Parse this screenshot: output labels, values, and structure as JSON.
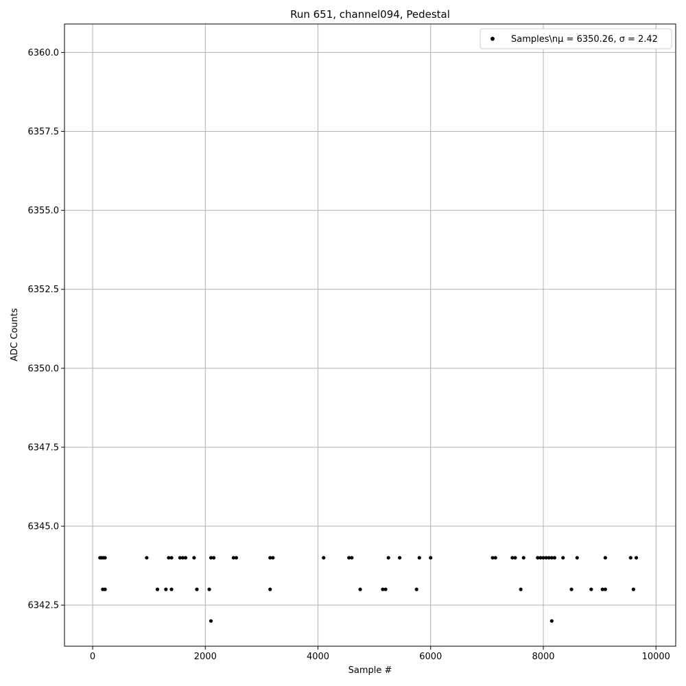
{
  "chart_data": {
    "type": "scatter",
    "title": "Run 651, channel094, Pedestal",
    "xlabel": "Sample #",
    "ylabel": "ADC Counts",
    "xlim": [
      -500,
      10350
    ],
    "ylim": [
      6341.2,
      6360.9
    ],
    "xticks": [
      0,
      2000,
      4000,
      6000,
      8000,
      10000
    ],
    "yticks": [
      6342.5,
      6345.0,
      6347.5,
      6350.0,
      6352.5,
      6355.0,
      6357.5,
      6360.0
    ],
    "xtick_labels": [
      "0",
      "2000",
      "4000",
      "6000",
      "8000",
      "10000"
    ],
    "ytick_labels": [
      "6342.5",
      "6345.0",
      "6347.5",
      "6350.0",
      "6352.5",
      "6355.0",
      "6357.5",
      "6360.0"
    ],
    "grid": true,
    "legend": {
      "placement": "top-right",
      "label": "Samples\\nμ = 6350.26, σ = 2.42"
    },
    "marker_color": "#000000",
    "series": [
      {
        "name": "Samples\\nμ = 6350.26, σ = 2.42",
        "points": [
          [
            2100,
            6342
          ],
          [
            8150,
            6342
          ],
          [
            180,
            6343
          ],
          [
            220,
            6343
          ],
          [
            1150,
            6343
          ],
          [
            1300,
            6343
          ],
          [
            1400,
            6343
          ],
          [
            1850,
            6343
          ],
          [
            2070,
            6343
          ],
          [
            3150,
            6343
          ],
          [
            4750,
            6343
          ],
          [
            5150,
            6343
          ],
          [
            5200,
            6343
          ],
          [
            5750,
            6343
          ],
          [
            7600,
            6343
          ],
          [
            8500,
            6343
          ],
          [
            8850,
            6343
          ],
          [
            9050,
            6343
          ],
          [
            9100,
            6343
          ],
          [
            9600,
            6343
          ],
          [
            130,
            6344
          ],
          [
            160,
            6344
          ],
          [
            190,
            6344
          ],
          [
            220,
            6344
          ],
          [
            960,
            6344
          ],
          [
            1350,
            6344
          ],
          [
            1400,
            6344
          ],
          [
            1550,
            6344
          ],
          [
            1600,
            6344
          ],
          [
            1650,
            6344
          ],
          [
            1800,
            6344
          ],
          [
            2100,
            6344
          ],
          [
            2150,
            6344
          ],
          [
            2500,
            6344
          ],
          [
            2550,
            6344
          ],
          [
            3150,
            6344
          ],
          [
            3200,
            6344
          ],
          [
            4100,
            6344
          ],
          [
            4550,
            6344
          ],
          [
            4600,
            6344
          ],
          [
            5250,
            6344
          ],
          [
            5450,
            6344
          ],
          [
            5800,
            6344
          ],
          [
            6000,
            6344
          ],
          [
            7100,
            6344
          ],
          [
            7150,
            6344
          ],
          [
            7450,
            6344
          ],
          [
            7500,
            6344
          ],
          [
            7650,
            6344
          ],
          [
            7900,
            6344
          ],
          [
            7950,
            6344
          ],
          [
            8000,
            6344
          ],
          [
            8050,
            6344
          ],
          [
            8100,
            6344
          ],
          [
            8150,
            6344
          ],
          [
            8200,
            6344
          ],
          [
            8350,
            6344
          ],
          [
            8600,
            6344
          ],
          [
            9100,
            6344
          ],
          [
            9550,
            6344
          ],
          [
            9650,
            6344
          ]
        ]
      }
    ]
  }
}
